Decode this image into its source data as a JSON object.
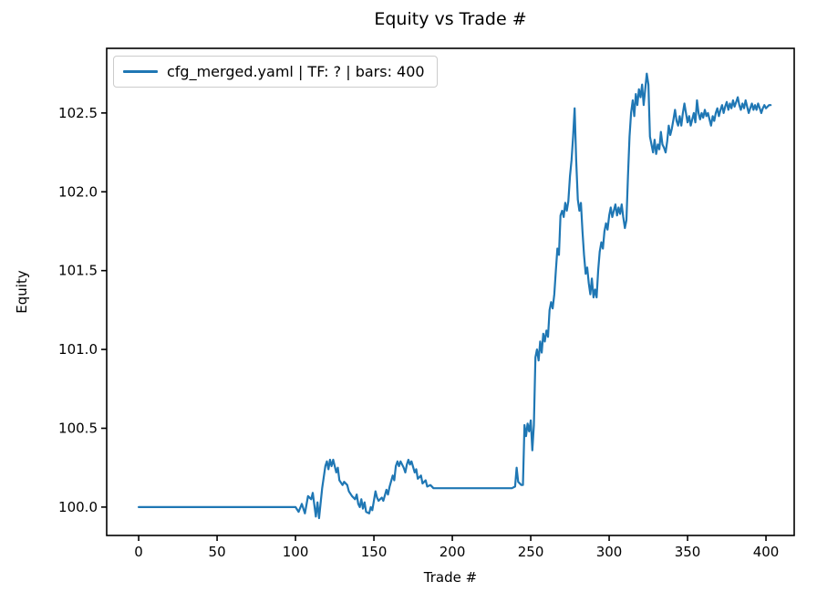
{
  "chart_data": {
    "type": "line",
    "title": "Equity vs Trade #",
    "xlabel": "Trade #",
    "ylabel": "Equity",
    "xlim": [
      -20.4,
      418
    ],
    "ylim": [
      99.82,
      102.91
    ],
    "grid": false,
    "legend_position": "upper left",
    "xtick_values": [
      0,
      50,
      100,
      150,
      200,
      250,
      300,
      350,
      400
    ],
    "xtick_labels": [
      "0",
      "50",
      "100",
      "150",
      "200",
      "250",
      "300",
      "350",
      "400"
    ],
    "ytick_values": [
      100.0,
      100.5,
      101.0,
      101.5,
      102.0,
      102.5
    ],
    "ytick_labels": [
      "100.0",
      "100.5",
      "101.0",
      "101.5",
      "102.0",
      "102.5"
    ],
    "series": [
      {
        "name": "cfg_merged.yaml | TF: ? | bars: 400",
        "color": "#1f77b4",
        "points": [
          [
            0,
            100
          ],
          [
            20,
            100
          ],
          [
            40,
            100
          ],
          [
            60,
            100
          ],
          [
            80,
            100
          ],
          [
            99,
            100
          ],
          [
            100,
            100
          ],
          [
            102,
            99.97
          ],
          [
            104,
            100.02
          ],
          [
            106,
            99.96
          ],
          [
            108,
            100.07
          ],
          [
            110,
            100.05
          ],
          [
            111,
            100.09
          ],
          [
            113,
            99.94
          ],
          [
            114,
            100.03
          ],
          [
            115,
            99.93
          ],
          [
            117,
            100.12
          ],
          [
            119,
            100.26
          ],
          [
            120,
            100.29
          ],
          [
            121,
            100.24
          ],
          [
            122,
            100.3
          ],
          [
            123,
            100.26
          ],
          [
            124,
            100.3
          ],
          [
            126,
            100.22
          ],
          [
            127,
            100.25
          ],
          [
            128,
            100.17
          ],
          [
            130,
            100.14
          ],
          [
            131,
            100.16
          ],
          [
            133,
            100.14
          ],
          [
            134,
            100.1
          ],
          [
            136,
            100.07
          ],
          [
            138,
            100.05
          ],
          [
            139,
            100.08
          ],
          [
            140,
            100.02
          ],
          [
            141,
            100
          ],
          [
            142,
            100.05
          ],
          [
            143,
            99.99
          ],
          [
            144,
            100.03
          ],
          [
            145,
            99.97
          ],
          [
            147,
            99.96
          ],
          [
            148,
            100
          ],
          [
            149,
            99.98
          ],
          [
            151,
            100.1
          ],
          [
            152,
            100.06
          ],
          [
            153,
            100.04
          ],
          [
            155,
            100.06
          ],
          [
            156,
            100.04
          ],
          [
            158,
            100.11
          ],
          [
            159,
            100.08
          ],
          [
            160,
            100.13
          ],
          [
            162,
            100.2
          ],
          [
            163,
            100.17
          ],
          [
            164,
            100.26
          ],
          [
            165,
            100.29
          ],
          [
            166,
            100.26
          ],
          [
            167,
            100.29
          ],
          [
            169,
            100.25
          ],
          [
            170,
            100.22
          ],
          [
            171,
            100.27
          ],
          [
            172,
            100.3
          ],
          [
            173,
            100.27
          ],
          [
            174,
            100.29
          ],
          [
            176,
            100.22
          ],
          [
            177,
            100.24
          ],
          [
            178,
            100.18
          ],
          [
            180,
            100.2
          ],
          [
            181,
            100.15
          ],
          [
            183,
            100.17
          ],
          [
            184,
            100.13
          ],
          [
            186,
            100.14
          ],
          [
            188,
            100.12
          ],
          [
            190,
            100.12
          ],
          [
            200,
            100.12
          ],
          [
            210,
            100.12
          ],
          [
            220,
            100.12
          ],
          [
            230,
            100.12
          ],
          [
            238,
            100.12
          ],
          [
            240,
            100.13
          ],
          [
            241,
            100.25
          ],
          [
            242,
            100.16
          ],
          [
            244,
            100.14
          ],
          [
            245,
            100.14
          ],
          [
            246,
            100.52
          ],
          [
            247,
            100.45
          ],
          [
            248,
            100.53
          ],
          [
            249,
            100.48
          ],
          [
            250,
            100.55
          ],
          [
            251,
            100.36
          ],
          [
            252,
            100.52
          ],
          [
            253,
            100.95
          ],
          [
            254,
            101
          ],
          [
            255,
            100.93
          ],
          [
            256,
            101.05
          ],
          [
            257,
            100.98
          ],
          [
            258,
            101.1
          ],
          [
            259,
            101.05
          ],
          [
            260,
            101.12
          ],
          [
            261,
            101.08
          ],
          [
            262,
            101.25
          ],
          [
            263,
            101.3
          ],
          [
            264,
            101.26
          ],
          [
            265,
            101.35
          ],
          [
            266,
            101.5
          ],
          [
            267,
            101.64
          ],
          [
            268,
            101.6
          ],
          [
            269,
            101.85
          ],
          [
            270,
            101.88
          ],
          [
            271,
            101.84
          ],
          [
            272,
            101.93
          ],
          [
            273,
            101.88
          ],
          [
            274,
            101.94
          ],
          [
            275,
            102.1
          ],
          [
            276,
            102.2
          ],
          [
            277,
            102.35
          ],
          [
            278,
            102.53
          ],
          [
            279,
            102.2
          ],
          [
            280,
            101.95
          ],
          [
            281,
            101.88
          ],
          [
            282,
            101.93
          ],
          [
            283,
            101.75
          ],
          [
            284,
            101.6
          ],
          [
            285,
            101.48
          ],
          [
            286,
            101.52
          ],
          [
            287,
            101.42
          ],
          [
            288,
            101.35
          ],
          [
            289,
            101.45
          ],
          [
            290,
            101.33
          ],
          [
            291,
            101.38
          ],
          [
            292,
            101.33
          ],
          [
            293,
            101.5
          ],
          [
            294,
            101.62
          ],
          [
            295,
            101.68
          ],
          [
            296,
            101.64
          ],
          [
            297,
            101.75
          ],
          [
            298,
            101.8
          ],
          [
            299,
            101.76
          ],
          [
            300,
            101.85
          ],
          [
            301,
            101.9
          ],
          [
            302,
            101.84
          ],
          [
            303,
            101.88
          ],
          [
            304,
            101.92
          ],
          [
            305,
            101.85
          ],
          [
            306,
            101.9
          ],
          [
            307,
            101.86
          ],
          [
            308,
            101.92
          ],
          [
            309,
            101.84
          ],
          [
            310,
            101.77
          ],
          [
            311,
            101.82
          ],
          [
            312,
            102.1
          ],
          [
            313,
            102.35
          ],
          [
            314,
            102.5
          ],
          [
            315,
            102.58
          ],
          [
            316,
            102.48
          ],
          [
            317,
            102.62
          ],
          [
            318,
            102.55
          ],
          [
            319,
            102.65
          ],
          [
            320,
            102.6
          ],
          [
            321,
            102.68
          ],
          [
            322,
            102.55
          ],
          [
            323,
            102.65
          ],
          [
            324,
            102.75
          ],
          [
            325,
            102.68
          ],
          [
            326,
            102.35
          ],
          [
            327,
            102.3
          ],
          [
            328,
            102.25
          ],
          [
            329,
            102.33
          ],
          [
            330,
            102.24
          ],
          [
            331,
            102.3
          ],
          [
            332,
            102.27
          ],
          [
            333,
            102.38
          ],
          [
            334,
            102.3
          ],
          [
            335,
            102.28
          ],
          [
            336,
            102.25
          ],
          [
            337,
            102.32
          ],
          [
            338,
            102.42
          ],
          [
            339,
            102.36
          ],
          [
            340,
            102.4
          ],
          [
            341,
            102.46
          ],
          [
            342,
            102.52
          ],
          [
            343,
            102.45
          ],
          [
            344,
            102.42
          ],
          [
            345,
            102.48
          ],
          [
            346,
            102.42
          ],
          [
            347,
            102.5
          ],
          [
            348,
            102.56
          ],
          [
            349,
            102.5
          ],
          [
            350,
            102.44
          ],
          [
            351,
            102.48
          ],
          [
            352,
            102.42
          ],
          [
            353,
            102.46
          ],
          [
            354,
            102.5
          ],
          [
            355,
            102.44
          ],
          [
            356,
            102.58
          ],
          [
            357,
            102.5
          ],
          [
            358,
            102.46
          ],
          [
            359,
            102.5
          ],
          [
            360,
            102.47
          ],
          [
            361,
            102.52
          ],
          [
            362,
            102.48
          ],
          [
            363,
            102.5
          ],
          [
            364,
            102.46
          ],
          [
            365,
            102.42
          ],
          [
            366,
            102.48
          ],
          [
            367,
            102.45
          ],
          [
            368,
            102.5
          ],
          [
            369,
            102.53
          ],
          [
            370,
            102.48
          ],
          [
            371,
            102.52
          ],
          [
            372,
            102.55
          ],
          [
            373,
            102.5
          ],
          [
            374,
            102.54
          ],
          [
            375,
            102.57
          ],
          [
            376,
            102.52
          ],
          [
            377,
            102.56
          ],
          [
            378,
            102.53
          ],
          [
            379,
            102.58
          ],
          [
            380,
            102.54
          ],
          [
            381,
            102.57
          ],
          [
            382,
            102.6
          ],
          [
            383,
            102.55
          ],
          [
            384,
            102.52
          ],
          [
            385,
            102.56
          ],
          [
            386,
            102.53
          ],
          [
            387,
            102.58
          ],
          [
            388,
            102.54
          ],
          [
            389,
            102.5
          ],
          [
            390,
            102.53
          ],
          [
            391,
            102.56
          ],
          [
            392,
            102.52
          ],
          [
            393,
            102.55
          ],
          [
            394,
            102.52
          ],
          [
            395,
            102.56
          ],
          [
            396,
            102.53
          ],
          [
            397,
            102.5
          ],
          [
            398,
            102.53
          ],
          [
            399,
            102.55
          ],
          [
            400,
            102.53
          ],
          [
            401,
            102.54
          ],
          [
            402,
            102.55
          ],
          [
            403,
            102.55
          ]
        ]
      }
    ]
  }
}
